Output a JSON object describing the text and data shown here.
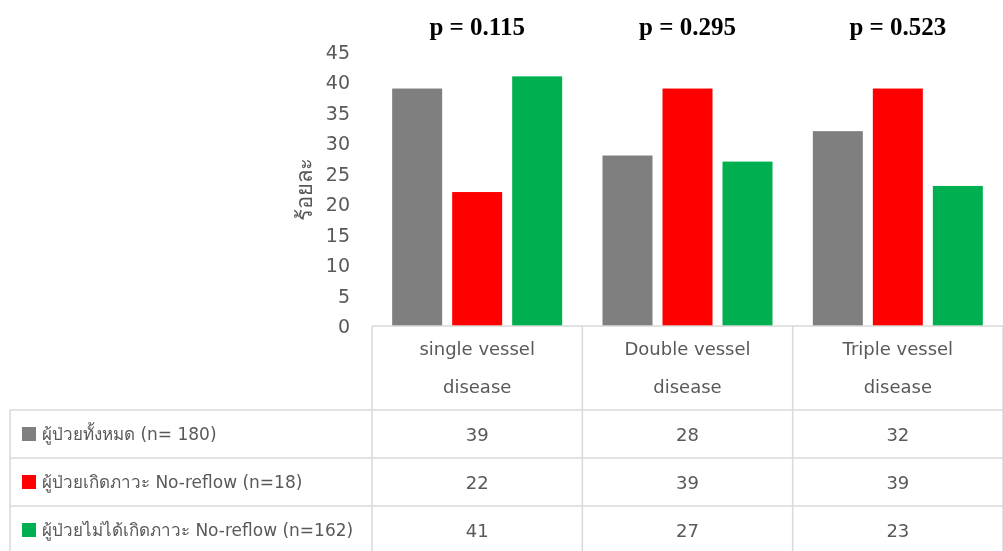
{
  "chart_data": {
    "type": "bar",
    "ylabel": "ร้อยละ",
    "categories": [
      "single vessel disease",
      "Double vessel disease",
      "Triple vessel disease"
    ],
    "series": [
      {
        "name": "ผู้ป่วยทั้งหมด (n= 180)",
        "color": "#7f7f7f",
        "values": [
          39,
          28,
          32
        ]
      },
      {
        "name": "ผู้ป่วยเกิดภาวะ No-reflow (n=18)",
        "color": "#ff0000",
        "values": [
          22,
          39,
          39
        ]
      },
      {
        "name": "ผู้ป่วยไม่ได้เกิดภาวะ No-reflow (n=162)",
        "color": "#00b050",
        "values": [
          41,
          27,
          23
        ]
      }
    ],
    "ylim": [
      0,
      45
    ],
    "yticks": [
      0,
      5,
      10,
      15,
      20,
      25,
      30,
      35,
      40,
      45
    ],
    "data_labels": true,
    "legend": "bottom",
    "annotations": [
      "p = 0.115",
      "p = 0.295",
      "p = 0.523"
    ]
  }
}
